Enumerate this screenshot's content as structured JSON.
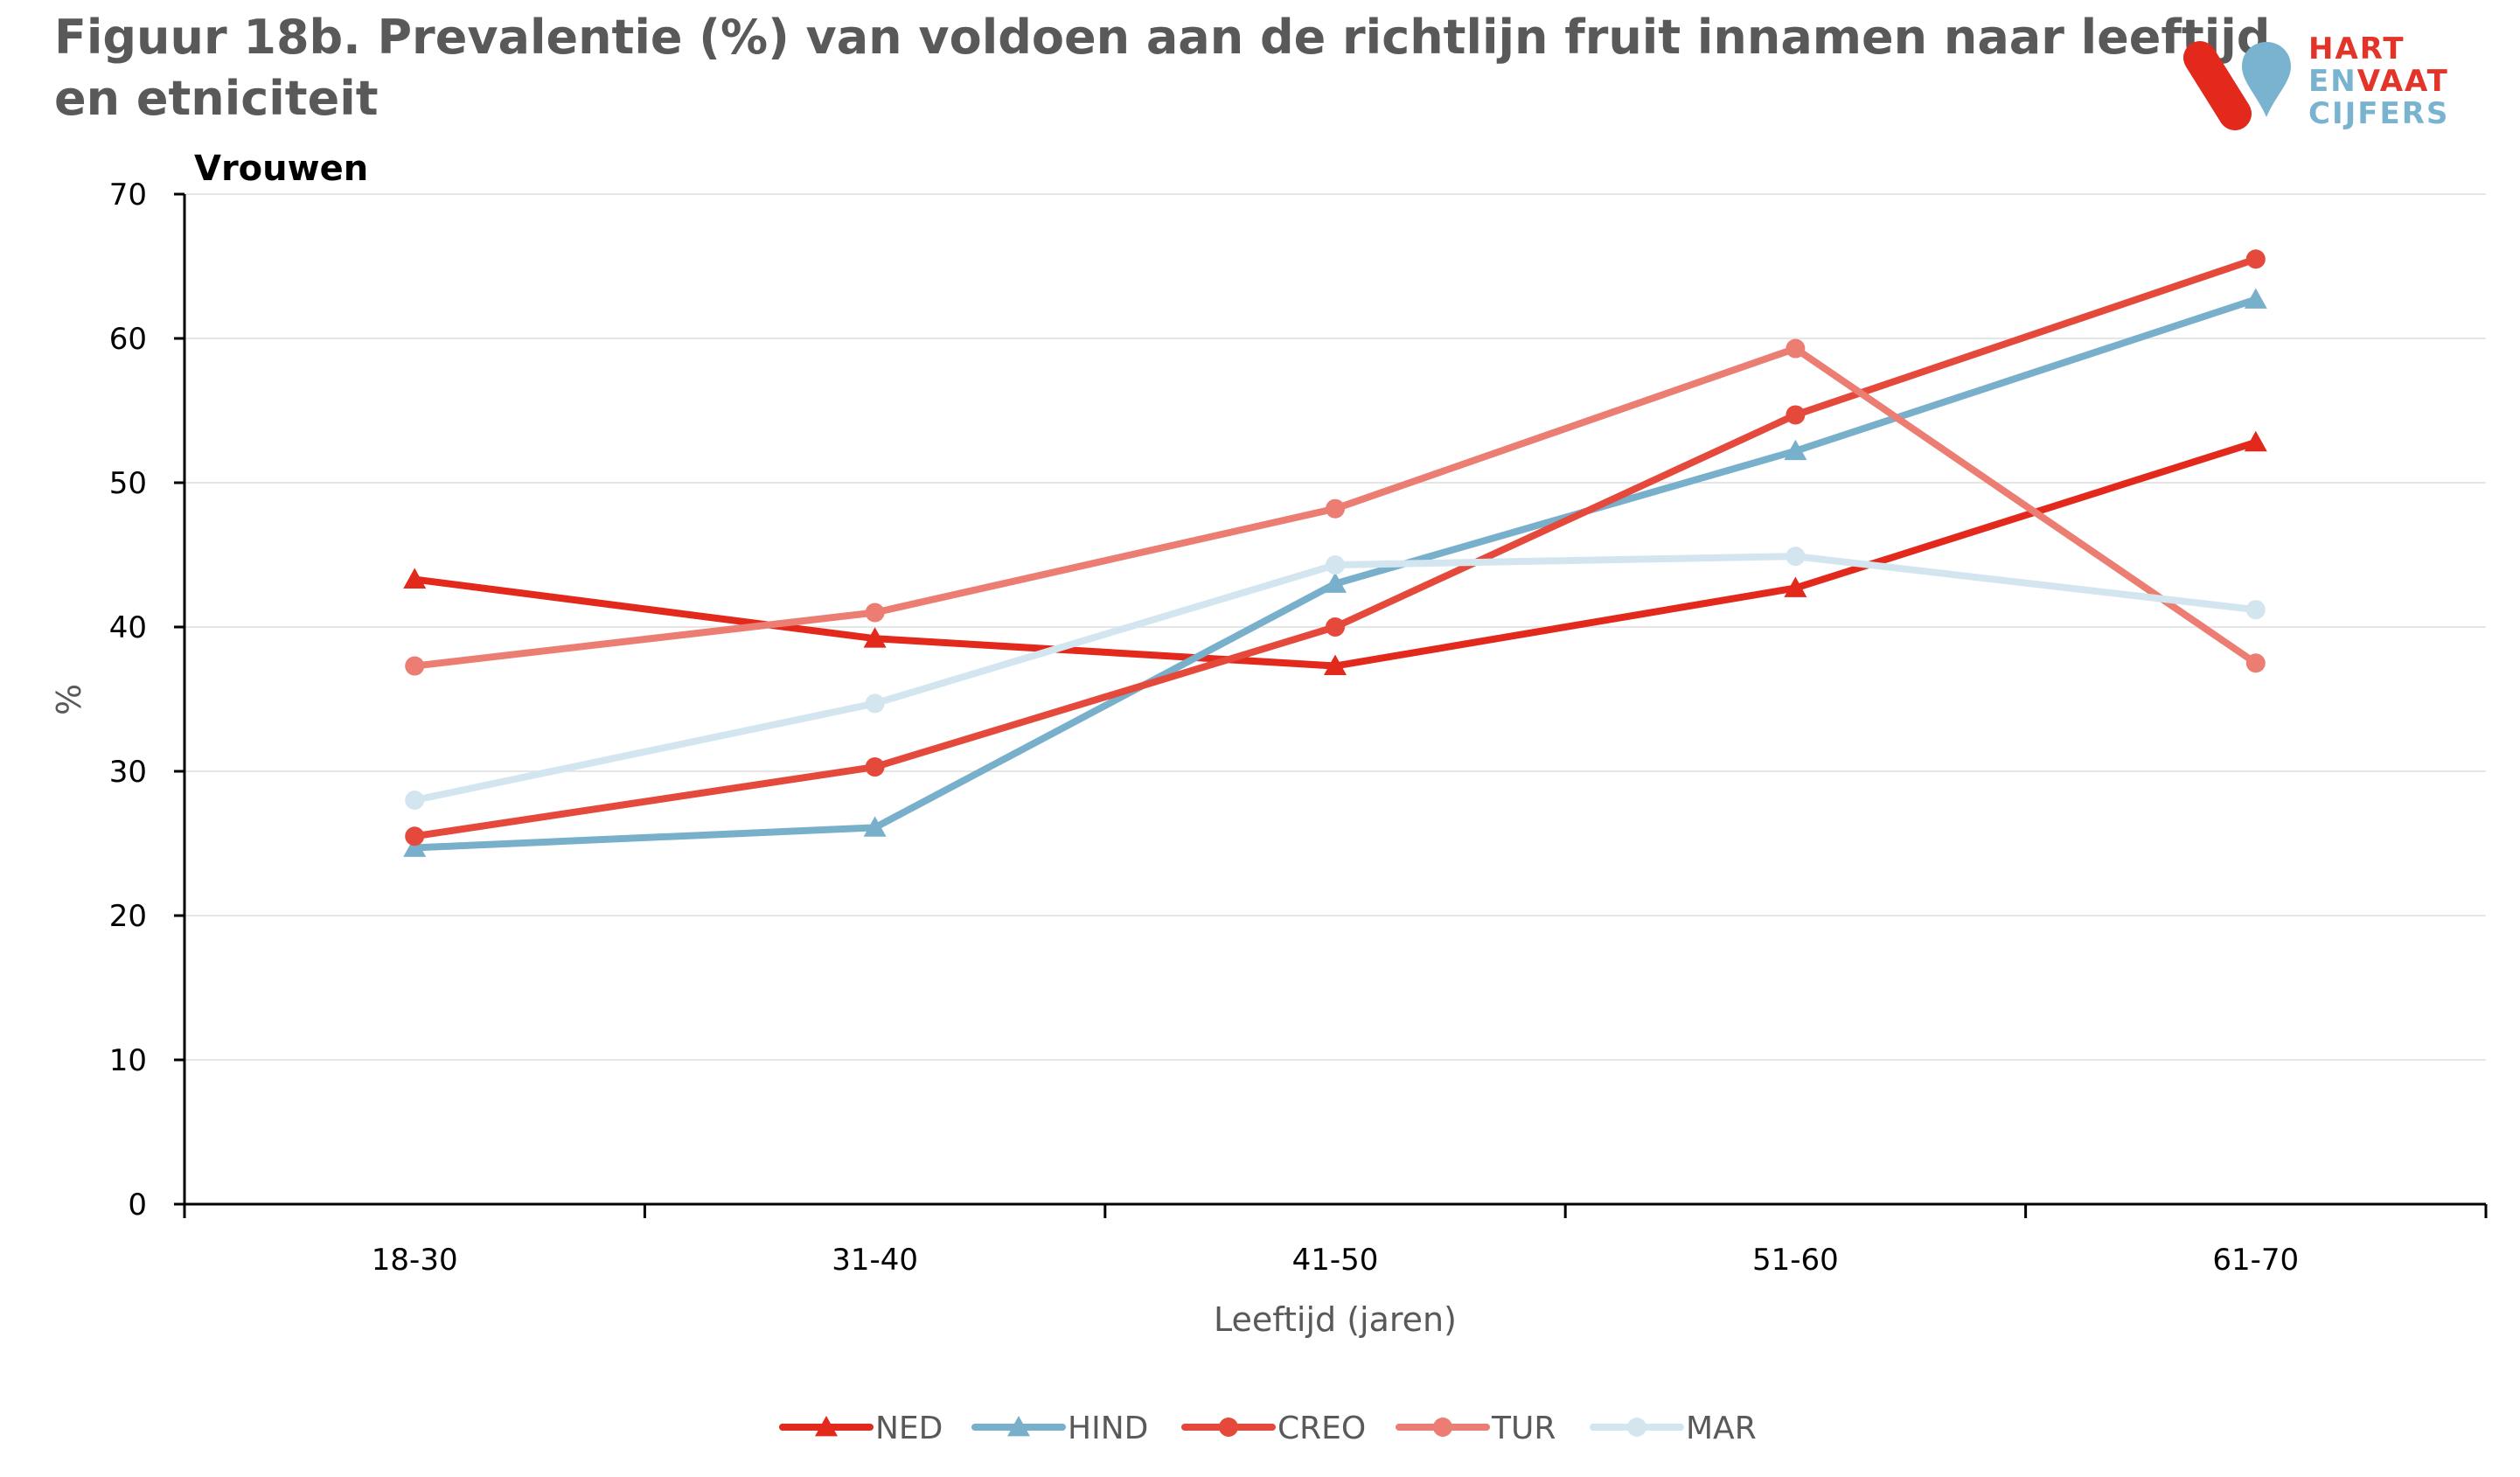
{
  "title_line1": "Figuur 18b. Prevalentie (%) van  voldoen aan de richtlijn fruit innamen naar leeftijd",
  "title_line2": "en etniciteit",
  "logo": {
    "line1": "HART",
    "line2a": "EN",
    "line2b": "VAAT",
    "line3": "CIJFERS"
  },
  "chart_data": {
    "type": "line",
    "subtitle": "Vrouwen",
    "categories": [
      "18-30",
      "31-40",
      "41-50",
      "51-60",
      "61-70"
    ],
    "xlabel": "Leeftijd (jaren)",
    "ylabel": "%",
    "ylim": [
      0,
      70
    ],
    "yticks": [
      0,
      10,
      20,
      30,
      40,
      50,
      60,
      70
    ],
    "grid": true,
    "legend_position": "bottom",
    "series": [
      {
        "name": "NED",
        "color": "#e3281c",
        "marker": "triangle",
        "values": [
          43.3,
          39.2,
          37.3,
          42.7,
          52.8
        ]
      },
      {
        "name": "HIND",
        "color": "#78b0cc",
        "marker": "triangle",
        "values": [
          24.7,
          26.1,
          43.0,
          52.2,
          62.7
        ]
      },
      {
        "name": "CREO",
        "color": "#e5493c",
        "marker": "circle",
        "values": [
          25.5,
          30.3,
          40.0,
          54.7,
          65.5
        ]
      },
      {
        "name": "TUR",
        "color": "#ec7d72",
        "marker": "circle",
        "values": [
          37.3,
          41.0,
          48.2,
          59.3,
          37.5
        ]
      },
      {
        "name": "MAR",
        "color": "#d3e6f0",
        "marker": "circle",
        "values": [
          28.0,
          34.7,
          44.3,
          44.9,
          41.2
        ]
      }
    ]
  }
}
